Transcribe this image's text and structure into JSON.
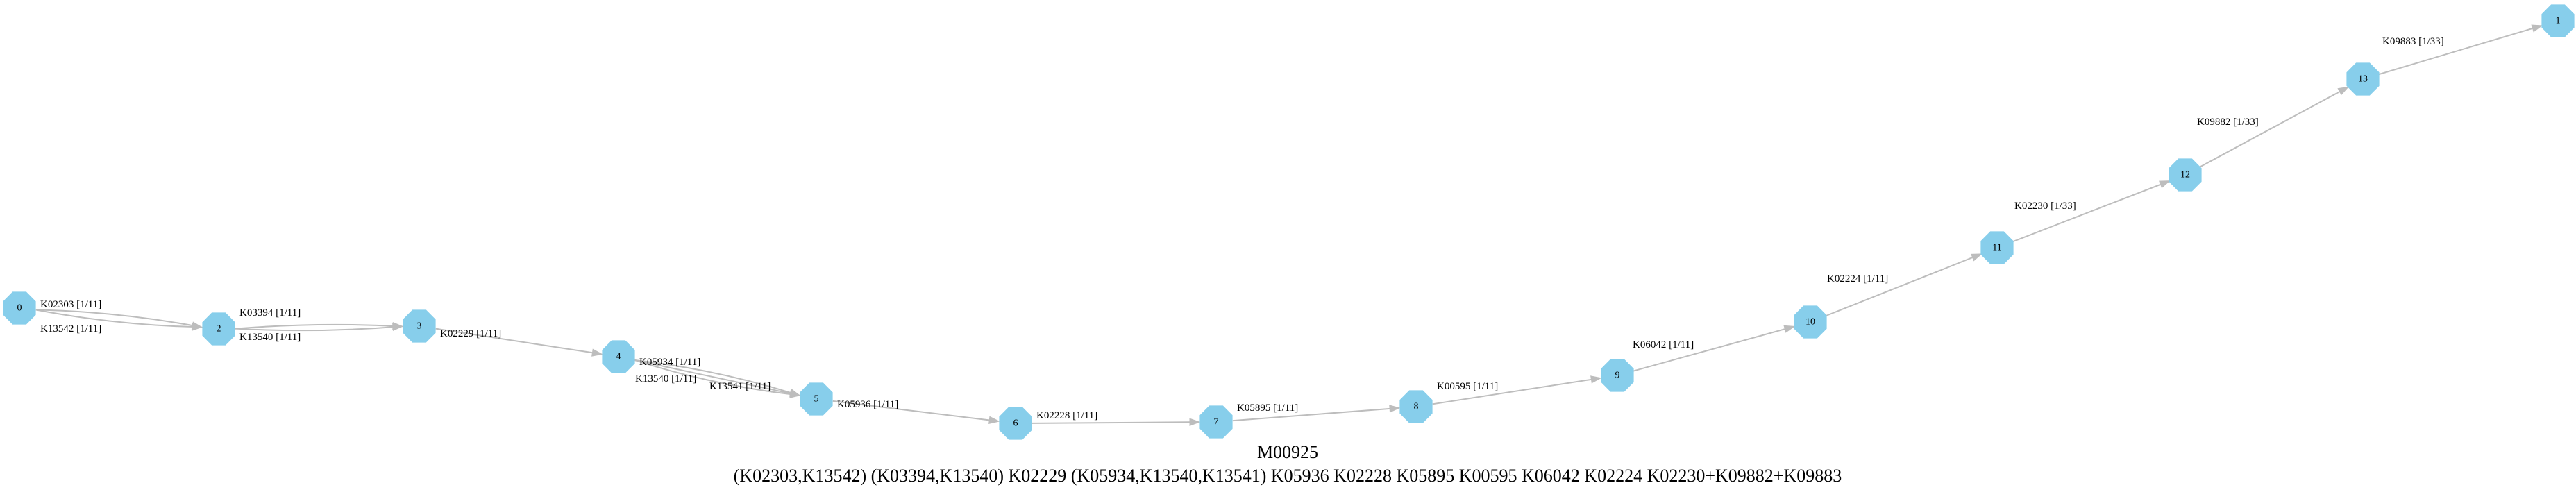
{
  "diagram": {
    "title": "M00925",
    "definition": "(K02303,K13542) (K03394,K13540) K02229 (K05934,K13540,K13541) K05936 K02228 K05895 K00595 K06042 K02224 K02230+K09882+K09883",
    "colors": {
      "node": "#87ceeb",
      "edge": "#bdbdbd",
      "text": "#000000"
    },
    "nodes": [
      {
        "id": "0",
        "label": "0"
      },
      {
        "id": "2",
        "label": "2"
      },
      {
        "id": "3",
        "label": "3"
      },
      {
        "id": "4",
        "label": "4"
      },
      {
        "id": "5",
        "label": "5"
      },
      {
        "id": "6",
        "label": "6"
      },
      {
        "id": "7",
        "label": "7"
      },
      {
        "id": "8",
        "label": "8"
      },
      {
        "id": "9",
        "label": "9"
      },
      {
        "id": "10",
        "label": "10"
      },
      {
        "id": "11",
        "label": "11"
      },
      {
        "id": "12",
        "label": "12"
      },
      {
        "id": "13",
        "label": "13"
      },
      {
        "id": "1",
        "label": "1"
      }
    ],
    "edges": [
      {
        "from": "0",
        "to": "2",
        "label": "K02303 [1/11]"
      },
      {
        "from": "0",
        "to": "2",
        "label": "K13542 [1/11]"
      },
      {
        "from": "2",
        "to": "3",
        "label": "K03394 [1/11]"
      },
      {
        "from": "2",
        "to": "3",
        "label": "K13540 [1/11]"
      },
      {
        "from": "3",
        "to": "4",
        "label": "K02229 [1/11]"
      },
      {
        "from": "4",
        "to": "5",
        "label": "K05934 [1/11]"
      },
      {
        "from": "4",
        "to": "5",
        "label": "K13540 [1/11]"
      },
      {
        "from": "4",
        "to": "5",
        "label": "K13541 [1/11]"
      },
      {
        "from": "5",
        "to": "6",
        "label": "K05936 [1/11]"
      },
      {
        "from": "6",
        "to": "7",
        "label": "K02228 [1/11]"
      },
      {
        "from": "7",
        "to": "8",
        "label": "K05895 [1/11]"
      },
      {
        "from": "8",
        "to": "9",
        "label": "K00595 [1/11]"
      },
      {
        "from": "9",
        "to": "10",
        "label": "K06042 [1/11]"
      },
      {
        "from": "10",
        "to": "11",
        "label": "K02224 [1/11]"
      },
      {
        "from": "11",
        "to": "12",
        "label": "K02230 [1/33]"
      },
      {
        "from": "12",
        "to": "13",
        "label": "K09882 [1/33]"
      },
      {
        "from": "13",
        "to": "1",
        "label": "K09883 [1/33]"
      }
    ]
  }
}
